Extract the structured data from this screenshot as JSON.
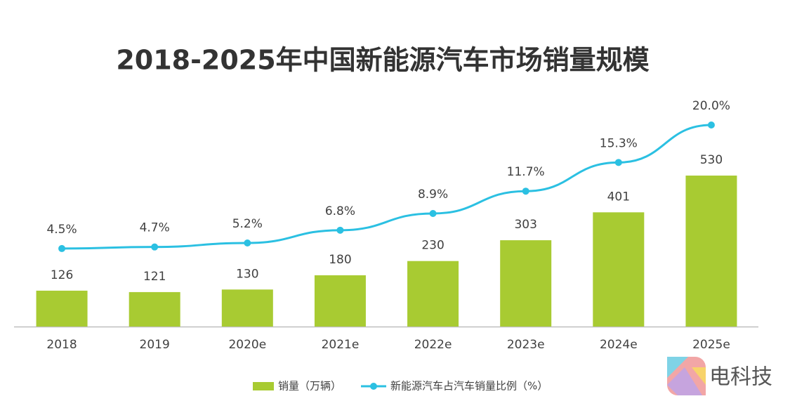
{
  "chart_data": {
    "type": "bar",
    "title": "2018-2025年中国新能源汽车市场销量规模",
    "categories": [
      "2018",
      "2019",
      "2020e",
      "2021e",
      "2022e",
      "2023e",
      "2024e",
      "2025e"
    ],
    "ylim": [
      0,
      600
    ],
    "y2lim": [
      0,
      20
    ],
    "series": [
      {
        "name": "销量（万辆）",
        "type": "bar",
        "color": "#a8cb32",
        "values": [
          126,
          121,
          130,
          180,
          230,
          303,
          401,
          530
        ]
      },
      {
        "name": "新能源汽车占汽车销量比例（%）",
        "type": "line",
        "axis": "y2",
        "color": "#2bc0e2",
        "values": [
          4.5,
          4.7,
          5.2,
          6.8,
          8.9,
          11.7,
          15.3,
          20.0
        ],
        "value_labels": [
          "4.5%",
          "4.7%",
          "5.2%",
          "6.8%",
          "8.9%",
          "11.7%",
          "15.3%",
          "20.0%"
        ]
      }
    ],
    "legend": "bottom",
    "watermark": "电科技"
  }
}
